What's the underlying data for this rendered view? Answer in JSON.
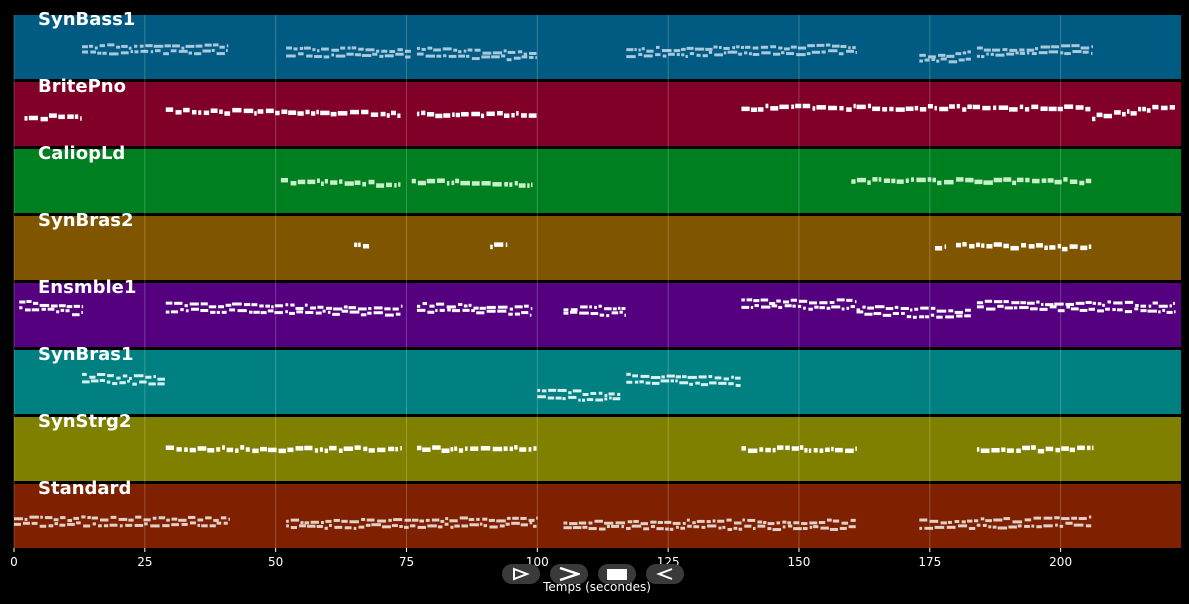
{
  "chart_data": {
    "type": "piano-roll",
    "xlabel": "Temps (secondes)",
    "xlim": [
      0,
      223
    ],
    "x_ticks": [
      0,
      25,
      50,
      75,
      100,
      125,
      150,
      175,
      200
    ],
    "grid": true,
    "tracks": [
      {
        "name": "SynBass1",
        "color": "#005a82",
        "note_color": "#a8c8dc",
        "segments": [
          [
            13,
            41,
            0.5,
            0.5
          ],
          [
            52,
            76,
            0.55,
            0.55
          ],
          [
            77,
            100,
            0.55,
            0.6
          ],
          [
            117,
            161,
            0.55,
            0.5
          ],
          [
            173,
            183,
            0.65,
            0.6
          ],
          [
            184,
            206,
            0.55,
            0.5
          ]
        ],
        "lines": 2
      },
      {
        "name": "BritePno",
        "color": "#800028",
        "note_color": "#ffffff",
        "segments": [
          [
            2,
            13,
            0.55,
            0.55
          ],
          [
            29,
            74,
            0.45,
            0.5
          ],
          [
            77,
            100,
            0.5,
            0.5
          ],
          [
            139,
            161,
            0.4,
            0.4
          ],
          [
            161,
            206,
            0.4,
            0.4
          ],
          [
            206,
            222,
            0.55,
            0.35
          ]
        ],
        "lines": 1
      },
      {
        "name": "CaliopLd",
        "color": "#007f20",
        "note_color": "#c8f0c8",
        "segments": [
          [
            51,
            74,
            0.5,
            0.55
          ],
          [
            76,
            99,
            0.5,
            0.55
          ],
          [
            160,
            206,
            0.5,
            0.5
          ]
        ],
        "lines": 1
      },
      {
        "name": "SynBras2",
        "color": "#7f5500",
        "note_color": "#ffffff",
        "segments": [
          [
            65,
            68,
            0.45,
            0.45
          ],
          [
            91,
            94,
            0.45,
            0.45
          ],
          [
            176,
            178,
            0.5,
            0.5
          ],
          [
            180,
            206,
            0.45,
            0.5
          ]
        ],
        "lines": 1
      },
      {
        "name": "Ensmble1",
        "color": "#55007f",
        "note_color": "#ffffff",
        "segments": [
          [
            1,
            13,
            0.3,
            0.4
          ],
          [
            29,
            74,
            0.35,
            0.4
          ],
          [
            77,
            99,
            0.35,
            0.4
          ],
          [
            105,
            117,
            0.4,
            0.4
          ],
          [
            139,
            161,
            0.3,
            0.3
          ],
          [
            161,
            183,
            0.4,
            0.45
          ],
          [
            184,
            222,
            0.3,
            0.35
          ]
        ],
        "lines": 2
      },
      {
        "name": "SynBras1",
        "color": "#008080",
        "note_color": "#d8f0f0",
        "segments": [
          [
            13,
            29,
            0.4,
            0.45
          ],
          [
            100,
            116,
            0.65,
            0.7
          ],
          [
            117,
            139,
            0.4,
            0.45
          ]
        ],
        "lines": 2
      },
      {
        "name": "SynStrg2",
        "color": "#808000",
        "note_color": "#ffffff",
        "segments": [
          [
            29,
            74,
            0.5,
            0.5
          ],
          [
            77,
            100,
            0.5,
            0.5
          ],
          [
            139,
            161,
            0.5,
            0.5
          ],
          [
            184,
            206,
            0.5,
            0.5
          ]
        ],
        "lines": 1
      },
      {
        "name": "Standard",
        "color": "#7f2000",
        "note_color": "#e0d0c8",
        "segments": [
          [
            0,
            41,
            0.55,
            0.55
          ],
          [
            52,
            100,
            0.6,
            0.55
          ],
          [
            105,
            161,
            0.6,
            0.6
          ],
          [
            173,
            206,
            0.6,
            0.55
          ]
        ],
        "lines": 2
      }
    ]
  },
  "controls": [
    "play-icon",
    "fast-forward-icon",
    "stop-icon",
    "rewind-icon"
  ]
}
